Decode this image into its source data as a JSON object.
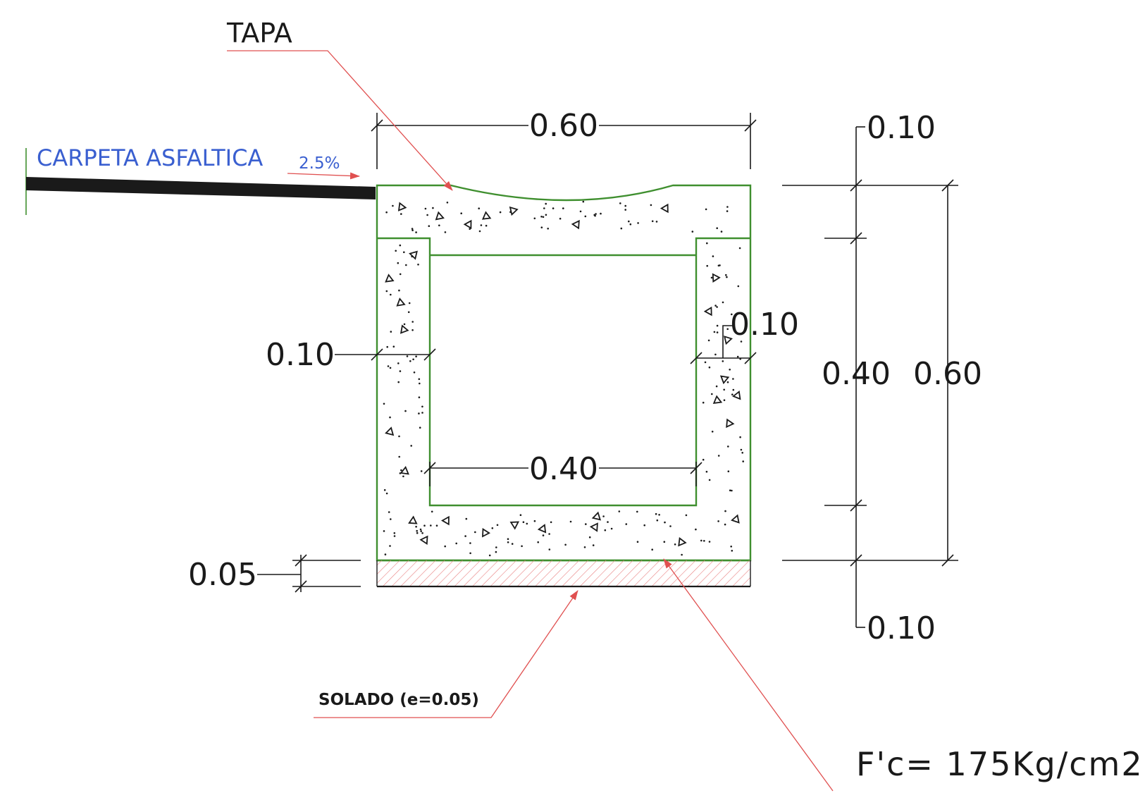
{
  "labels": {
    "tapa": "TAPA",
    "carpeta": "CARPETA ASFALTICA",
    "slope": "2.5%",
    "solado": "SOLADO (e=0.05)",
    "fc": "F'c= 175Kg/cm2"
  },
  "dimensions": {
    "top_width": "0.60",
    "inner_width": "0.40",
    "left_wall": "0.10",
    "right_wall": "0.10",
    "solado_thickness": "0.05",
    "top_slab": "0.10",
    "bottom_slab": "0.10",
    "inner_height": "0.40",
    "total_height": "0.60"
  },
  "colors": {
    "concrete_outline": "#3f8f2f",
    "leader": "#e05050",
    "asphalt": "#1a1a1a",
    "blue_text": "#3a5fd0",
    "solado_hatch": "#e88080"
  }
}
